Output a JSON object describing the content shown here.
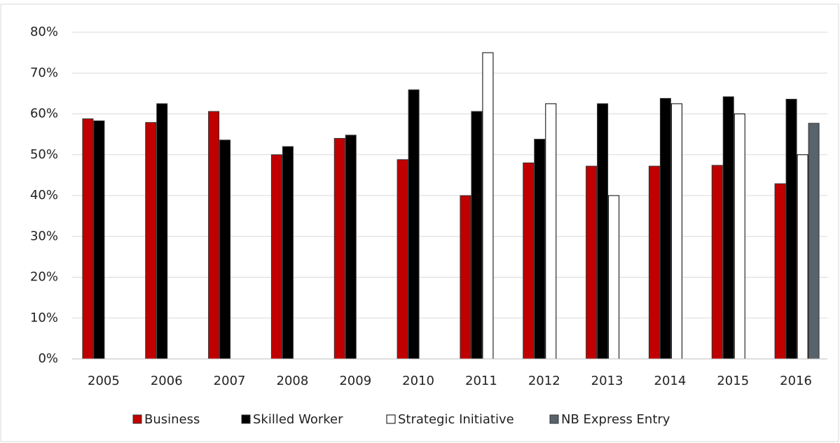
{
  "chart_data": {
    "type": "bar",
    "categories": [
      "2005",
      "2006",
      "2007",
      "2008",
      "2009",
      "2010",
      "2011",
      "2012",
      "2013",
      "2014",
      "2015",
      "2016"
    ],
    "series": [
      {
        "name": "Business",
        "color": "#c00000",
        "values": [
          58.8,
          57.9,
          60.6,
          50,
          54,
          48.8,
          40,
          48,
          47.2,
          47.2,
          47.4,
          42.9
        ]
      },
      {
        "name": "Skilled Worker",
        "color": "#000000",
        "values": [
          58.3,
          62.5,
          53.6,
          52,
          54.8,
          65.9,
          60.6,
          53.8,
          62.5,
          63.8,
          64.2,
          63.6
        ]
      },
      {
        "name": "Strategic Initiative",
        "color": "#ffffff",
        "values": [
          null,
          null,
          null,
          null,
          null,
          null,
          75,
          62.5,
          40,
          62.5,
          60,
          50
        ]
      },
      {
        "name": "NB Express Entry",
        "color": "#59636b",
        "values": [
          null,
          null,
          null,
          null,
          null,
          null,
          null,
          null,
          null,
          null,
          null,
          57.7
        ]
      }
    ],
    "ylim": [
      0,
      80
    ],
    "yticks": [
      {
        "value": 0,
        "label": "0%"
      },
      {
        "value": 10,
        "label": "10%"
      },
      {
        "value": 20,
        "label": "20%"
      },
      {
        "value": 30,
        "label": "30%"
      },
      {
        "value": 40,
        "label": "40%"
      },
      {
        "value": 50,
        "label": "50%"
      },
      {
        "value": 60,
        "label": "60%"
      },
      {
        "value": 70,
        "label": "70%"
      },
      {
        "value": 80,
        "label": "80%"
      }
    ],
    "grid": true,
    "legend": "bottom"
  }
}
